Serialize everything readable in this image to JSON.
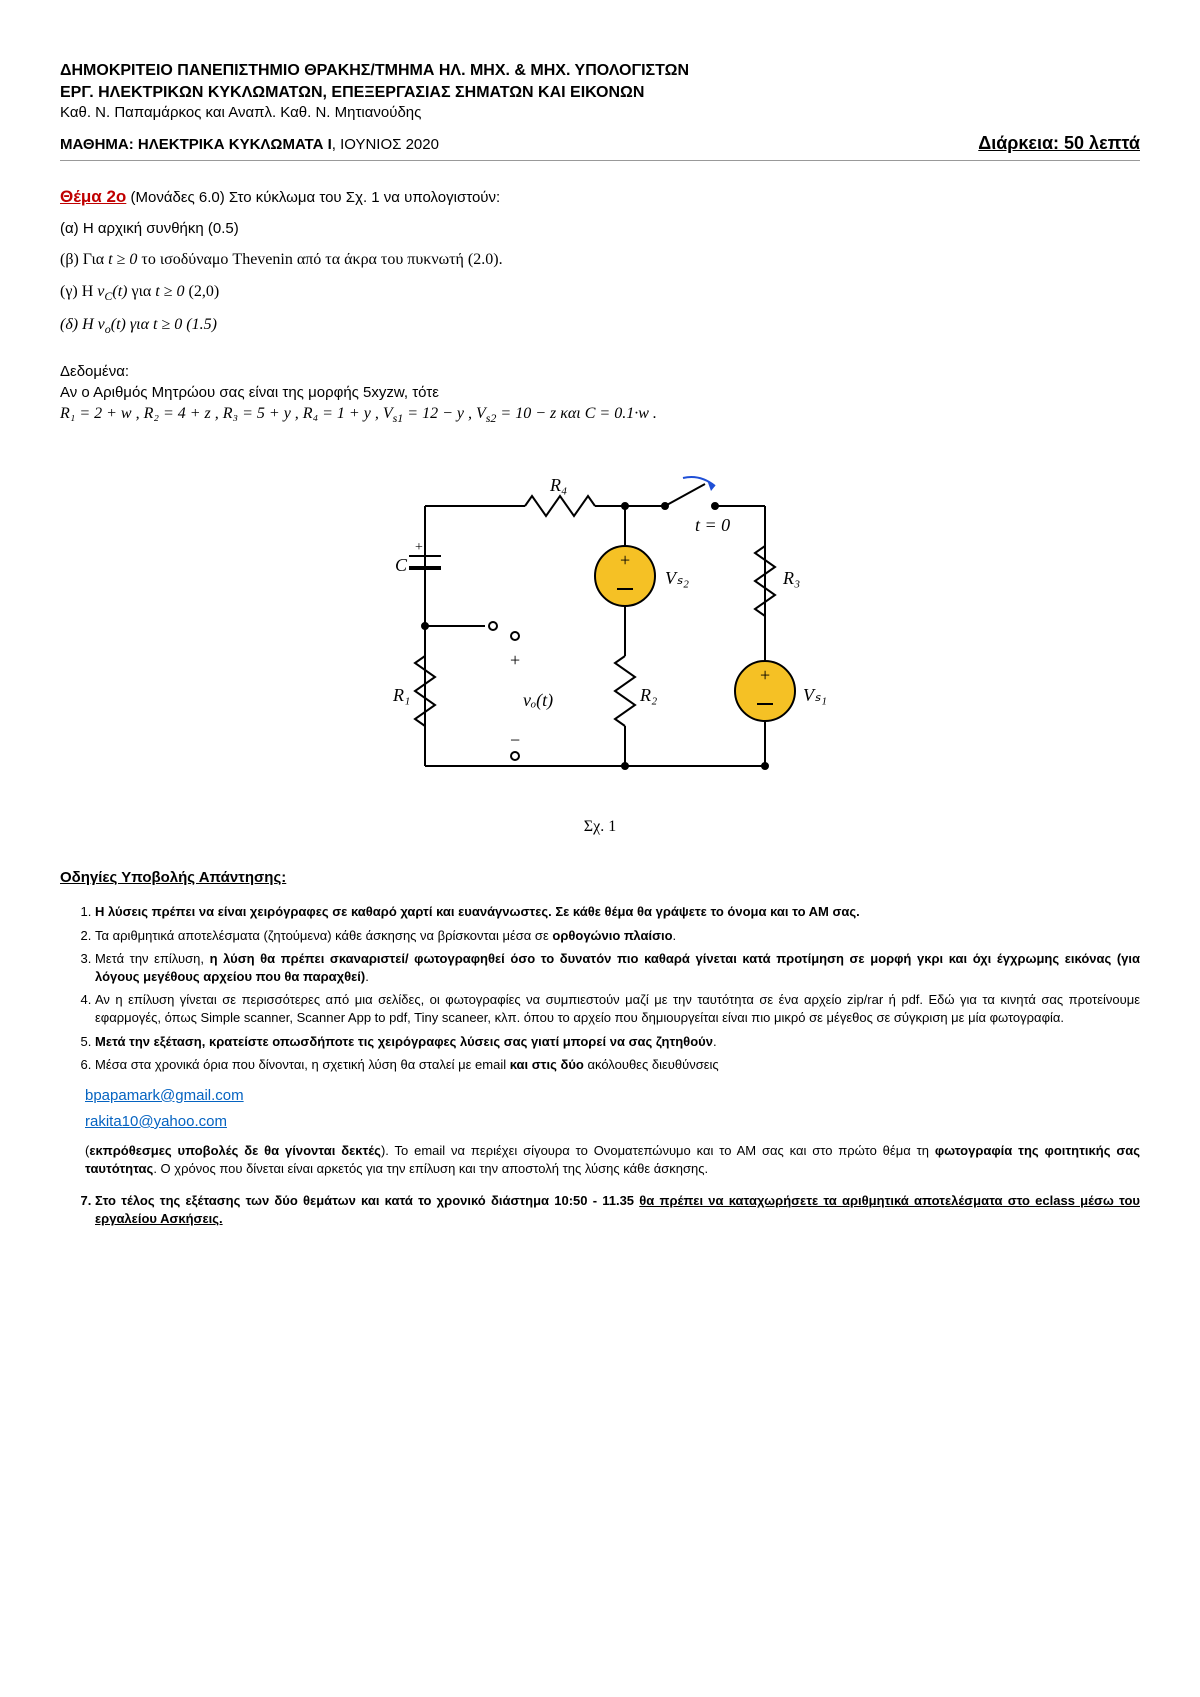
{
  "header": {
    "line1": "ΔΗΜΟΚΡΙΤΕΙΟ ΠΑΝΕΠΙΣΤΗΜΙΟ ΘΡΑΚΗΣ/ΤΜΗΜΑ ΗΛ. ΜΗΧ. & ΜΗΧ. ΥΠΟΛΟΓΙΣΤΩΝ",
    "line2": "ΕΡΓ. ΗΛΕΚΤΡΙΚΩΝ ΚΥΚΛΩΜΑΤΩΝ, ΕΠΕΞΕΡΓΑΣΙΑΣ ΣΗΜΑΤΩΝ ΚΑΙ ΕΙΚΟΝΩΝ",
    "line3": "Καθ. Ν. Παπαμάρκος και Αναπλ. Καθ. Ν. Μητιανούδης",
    "line4_bold": "ΜΑΘΗΜΑ: ΗΛΕΚΤΡΙΚΑ ΚΥΚΛΩΜΑΤΑ Ι",
    "line4_plain": ", ΙΟΥΝΙΟΣ  2020",
    "duration": "Διάρκεια: 50 λεπτά"
  },
  "thema": {
    "title_red": "Θέμα 2ο",
    "title_rest": " (Μονάδες 6.0) Στο κύκλωμα του Σχ. 1 να υπολογιστούν:",
    "a": "(α) Η αρχική συνθήκη (0.5)",
    "b_pre": "(β) Για ",
    "b_cond": "t ≥ 0",
    "b_post": " το ισοδύναμο Thevenin από τα άκρα του πυκνωτή (2.0).",
    "c_pre": "(γ) Η ",
    "c_var": "v",
    "c_sub": "C",
    "c_arg": "(t)",
    "c_for": "  για  ",
    "c_cond": "t ≥ 0",
    "c_pts": "  (2,0)",
    "d_pre": "(δ) Η ",
    "d_var": "v",
    "d_sub": "o",
    "d_arg": "(t)",
    "d_for": "  για  ",
    "d_cond": "t ≥ 0",
    "d_pts": "  (1.5)"
  },
  "dedomena": {
    "title": "Δεδομένα:",
    "line1": "Αν ο Αριθμός Μητρώου σας είναι της μορφής 5xyzw, τότε",
    "eq": {
      "R1": "R₁ = 2 + w ,   R₂ = 4 + z ,  R₃ = 5 + y ,  R₄ = 1 + y  ,  V",
      "s1sub": "s1",
      "mid1": " = 12 − y ,  V",
      "s2sub": "s2",
      "mid2": " = 10 − z  και  C = 0.1·w ."
    }
  },
  "circuit": {
    "caption": "Σχ. 1",
    "labels": {
      "C": "C",
      "R1": "R₁",
      "R2": "R₂",
      "R3": "R₃",
      "R4": "R₄",
      "Vs1": "Vₛ₁",
      "Vs2": "Vₛ₂",
      "vo": "vₒ(t)",
      "t0": "t = 0",
      "plus": "+",
      "minus": "−"
    },
    "colors": {
      "wire": "#000000",
      "src_fill": "#f5c125",
      "src_stroke": "#000000",
      "switch_arrow": "#1f4fd6",
      "text": "#000000"
    }
  },
  "instructions": {
    "title": "Οδηγίες Υποβολής Απάντησης:",
    "items": [
      {
        "html": "<span class='bold'>Η λύσεις πρέπει να είναι χειρόγραφες σε καθαρό χαρτί και ευανάγνωστες. Σε κάθε θέμα θα γράψετε το όνομα και το ΑΜ σας.</span>"
      },
      {
        "html": "Τα αριθμητικά αποτελέσματα (ζητούμενα) κάθε άσκησης να βρίσκονται μέσα σε <span class='bold'>ορθογώνιο πλαίσιο</span>."
      },
      {
        "html": "Μετά την επίλυση, <span class='bold'>η λύση θα πρέπει σκαναριστεί/ φωτογραφηθεί όσο το δυνατόν πιο καθαρά γίνεται κατά προτίμηση σε μορφή γκρι και όχι έγχρωμης εικόνας (για λόγους μεγέθους αρχείου που θα παραχθεί)</span>."
      },
      {
        "html": "Αν η επίλυση γίνεται σε περισσότερες από μια σελίδες, οι φωτογραφίες να συμπιεστούν μαζί με την ταυτότητα σε ένα αρχείο zip/rar ή pdf. Εδώ για τα κινητά σας προτείνουμε εφαρμογές, όπως Simple scanner, Scanner App to pdf, Tiny scaneer, κλπ. όπου το αρχείο που δημιουργείται είναι πιο μικρό σε μέγεθος σε σύγκριση με μία φωτογραφία."
      },
      {
        "html": "<span class='bold'>Μετά την εξέταση, κρατείστε οπωσδήποτε τις χειρόγραφες λύσεις σας γιατί μπορεί να σας ζητηθούν</span>."
      },
      {
        "html": "Μέσα στα χρονικά όρια που δίνονται, η σχετική λύση θα σταλεί με email <span class='bold'>και στις δύο</span> ακόλουθες διευθύνσεις"
      }
    ],
    "emails": [
      "bpapamark@gmail.com",
      "rakita10@yahoo.com"
    ],
    "note_html": "(<span class='bold'>εκπρόθεσμες υποβολές δε θα γίνονται δεκτές</span>). Το email να περιέχει σίγουρα το Ονοματεπώνυμο και το ΑΜ σας και στο πρώτο θέμα τη <span class='bold'>φωτογραφία της φοιτητικής σας ταυτότητας</span>. Ο χρόνος που δίνεται είναι αρκετός για την επίλυση και την αποστολή της λύσης κάθε άσκησης.",
    "item7_html": "Στο τέλος της εξέτασης των δύο θεμάτων και κατά το χρονικό διάστημα <span class='bold'>10:50 - 11.35</span> <span class='bold u'>θα πρέπει να καταχωρήσετε τα αριθμητικά αποτελέσματα στο eclass μέσω του εργαλείου Ασκήσεις.</span>"
  }
}
